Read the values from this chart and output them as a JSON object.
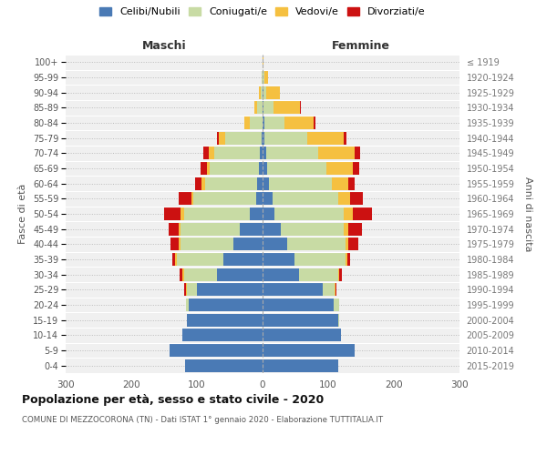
{
  "age_groups": [
    "0-4",
    "5-9",
    "10-14",
    "15-19",
    "20-24",
    "25-29",
    "30-34",
    "35-39",
    "40-44",
    "45-49",
    "50-54",
    "55-59",
    "60-64",
    "65-69",
    "70-74",
    "75-79",
    "80-84",
    "85-89",
    "90-94",
    "95-99",
    "100+"
  ],
  "birth_years": [
    "2015-2019",
    "2010-2014",
    "2005-2009",
    "2000-2004",
    "1995-1999",
    "1990-1994",
    "1985-1989",
    "1980-1984",
    "1975-1979",
    "1970-1974",
    "1965-1969",
    "1960-1964",
    "1955-1959",
    "1950-1954",
    "1945-1949",
    "1940-1944",
    "1935-1939",
    "1930-1934",
    "1925-1929",
    "1920-1924",
    "≤ 1919"
  ],
  "male": {
    "celibi": [
      118,
      142,
      122,
      115,
      112,
      100,
      70,
      60,
      45,
      35,
      20,
      10,
      8,
      5,
      4,
      2,
      0,
      0,
      0,
      0,
      0
    ],
    "coniugati": [
      0,
      0,
      0,
      0,
      5,
      15,
      50,
      70,
      80,
      90,
      100,
      95,
      80,
      75,
      70,
      55,
      20,
      8,
      3,
      1,
      0
    ],
    "vedovi": [
      0,
      0,
      0,
      0,
      0,
      2,
      2,
      3,
      3,
      3,
      5,
      3,
      5,
      5,
      8,
      10,
      8,
      5,
      3,
      1,
      0
    ],
    "divorziati": [
      0,
      0,
      0,
      0,
      0,
      3,
      5,
      5,
      12,
      15,
      25,
      20,
      10,
      10,
      8,
      2,
      0,
      0,
      0,
      0,
      0
    ]
  },
  "female": {
    "nubili": [
      115,
      140,
      120,
      115,
      108,
      92,
      55,
      48,
      38,
      28,
      18,
      15,
      10,
      7,
      5,
      3,
      3,
      2,
      1,
      0,
      0
    ],
    "coniugate": [
      0,
      0,
      0,
      2,
      8,
      18,
      60,
      78,
      88,
      95,
      105,
      100,
      95,
      90,
      80,
      65,
      30,
      15,
      5,
      3,
      0
    ],
    "vedove": [
      0,
      0,
      0,
      0,
      0,
      1,
      2,
      3,
      5,
      8,
      15,
      18,
      25,
      40,
      55,
      55,
      45,
      40,
      20,
      5,
      1
    ],
    "divorziate": [
      0,
      0,
      0,
      0,
      0,
      2,
      4,
      5,
      15,
      20,
      28,
      20,
      10,
      10,
      8,
      5,
      2,
      2,
      1,
      0,
      0
    ]
  },
  "colors": {
    "celibi": "#4a7ab5",
    "coniugati": "#c8dba4",
    "vedovi": "#f5c040",
    "divorziati": "#cc1111"
  },
  "xlim": 300,
  "title": "Popolazione per età, sesso e stato civile - 2020",
  "subtitle": "COMUNE DI MEZZOCORONA (TN) - Dati ISTAT 1° gennaio 2020 - Elaborazione TUTTITALIA.IT",
  "ylabel_left": "Fasce di età",
  "ylabel_right": "Anni di nascita",
  "xlabel_left": "Maschi",
  "xlabel_right": "Femmine",
  "legend_labels": [
    "Celibi/Nubili",
    "Coniugati/e",
    "Vedovi/e",
    "Divorziati/e"
  ],
  "bg_color": "#f0f0f0"
}
